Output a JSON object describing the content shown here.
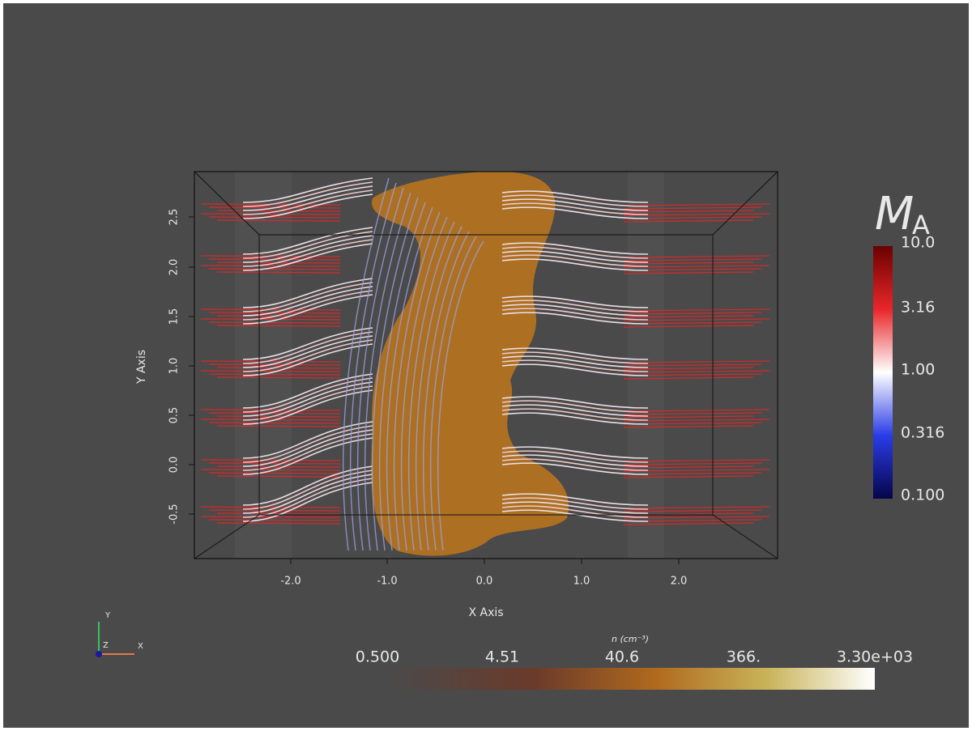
{
  "axes": {
    "x_label": "X Axis",
    "y_label": "Y Axis",
    "x_ticks": [
      "-2.0",
      "-1.0",
      "0.0",
      "1.0",
      "2.0"
    ],
    "y_ticks": [
      "2.5",
      "2.0",
      "1.5",
      "1.0",
      "0.5",
      "0.0",
      "-0.5"
    ]
  },
  "orientation": {
    "y": "Y",
    "z": "Z",
    "x": "X"
  },
  "colorbar_ma": {
    "title_main": "M",
    "title_sub": "A",
    "labels": [
      "10.0",
      "3.16",
      "1.00",
      "0.316",
      "0.100"
    ]
  },
  "colorbar_n": {
    "title": "n (cm⁻³)",
    "labels": [
      "0.500",
      "4.51",
      "40.6",
      "366.",
      "3.30e+03"
    ]
  }
}
